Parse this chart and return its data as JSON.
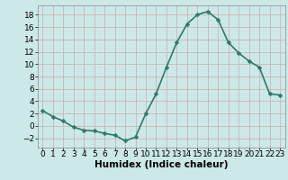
{
  "x": [
    0,
    1,
    2,
    3,
    4,
    5,
    6,
    7,
    8,
    9,
    10,
    11,
    12,
    13,
    14,
    15,
    16,
    17,
    18,
    19,
    20,
    21,
    22,
    23
  ],
  "y": [
    2.5,
    1.5,
    0.8,
    -0.2,
    -0.7,
    -0.8,
    -1.2,
    -1.5,
    -2.4,
    -1.8,
    2.0,
    5.2,
    9.5,
    13.5,
    16.5,
    18.0,
    18.5,
    17.2,
    13.5,
    11.8,
    10.5,
    9.5,
    5.2,
    5.0
  ],
  "line_color": "#2d7a6a",
  "marker_color": "#2d7a6a",
  "bg_color": "#cde8e8",
  "grid_color": "#c8b8b8",
  "xlabel": "Humidex (Indice chaleur)",
  "xlim": [
    -0.5,
    23.5
  ],
  "ylim": [
    -3.5,
    19.5
  ],
  "yticks": [
    -2,
    0,
    2,
    4,
    6,
    8,
    10,
    12,
    14,
    16,
    18
  ],
  "xticks": [
    0,
    1,
    2,
    3,
    4,
    5,
    6,
    7,
    8,
    9,
    10,
    11,
    12,
    13,
    14,
    15,
    16,
    17,
    18,
    19,
    20,
    21,
    22,
    23
  ],
  "xlabel_fontsize": 7.5,
  "tick_fontsize": 6.5,
  "line_width": 1.2,
  "marker_size": 2.5,
  "spine_color": "#888888"
}
